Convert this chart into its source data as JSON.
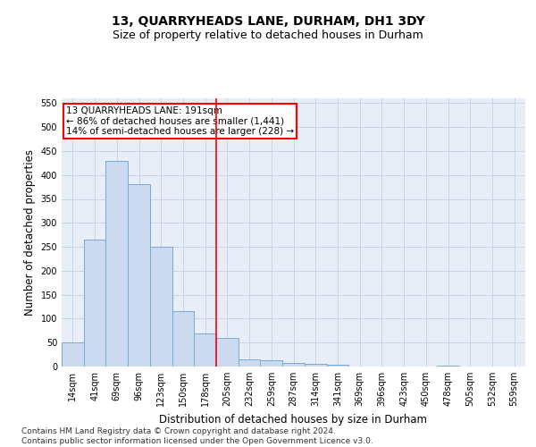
{
  "title": "13, QUARRYHEADS LANE, DURHAM, DH1 3DY",
  "subtitle": "Size of property relative to detached houses in Durham",
  "xlabel": "Distribution of detached houses by size in Durham",
  "ylabel": "Number of detached properties",
  "categories": [
    "14sqm",
    "41sqm",
    "69sqm",
    "96sqm",
    "123sqm",
    "150sqm",
    "178sqm",
    "205sqm",
    "232sqm",
    "259sqm",
    "287sqm",
    "314sqm",
    "341sqm",
    "369sqm",
    "396sqm",
    "423sqm",
    "450sqm",
    "478sqm",
    "505sqm",
    "532sqm",
    "559sqm"
  ],
  "values": [
    50,
    265,
    430,
    380,
    250,
    115,
    70,
    60,
    15,
    13,
    8,
    6,
    4,
    0,
    0,
    0,
    0,
    2,
    0,
    0,
    0
  ],
  "bar_color": "#ccdaf0",
  "bar_edge_color": "#7aaad0",
  "vline_x": 6.5,
  "vline_color": "red",
  "annotation_line1": "13 QUARRYHEADS LANE: 191sqm",
  "annotation_line2": "← 86% of detached houses are smaller (1,441)",
  "annotation_line3": "14% of semi-detached houses are larger (228) →",
  "annotation_box_color": "red",
  "annotation_bg_color": "white",
  "ylim": [
    0,
    560
  ],
  "yticks": [
    0,
    50,
    100,
    150,
    200,
    250,
    300,
    350,
    400,
    450,
    500,
    550
  ],
  "grid_color": "#c8d4e8",
  "bg_color": "#e8eef8",
  "footer_line1": "Contains HM Land Registry data © Crown copyright and database right 2024.",
  "footer_line2": "Contains public sector information licensed under the Open Government Licence v3.0.",
  "title_fontsize": 10,
  "subtitle_fontsize": 9,
  "axis_label_fontsize": 8.5,
  "tick_fontsize": 7,
  "annotation_fontsize": 7.5,
  "footer_fontsize": 6.5
}
